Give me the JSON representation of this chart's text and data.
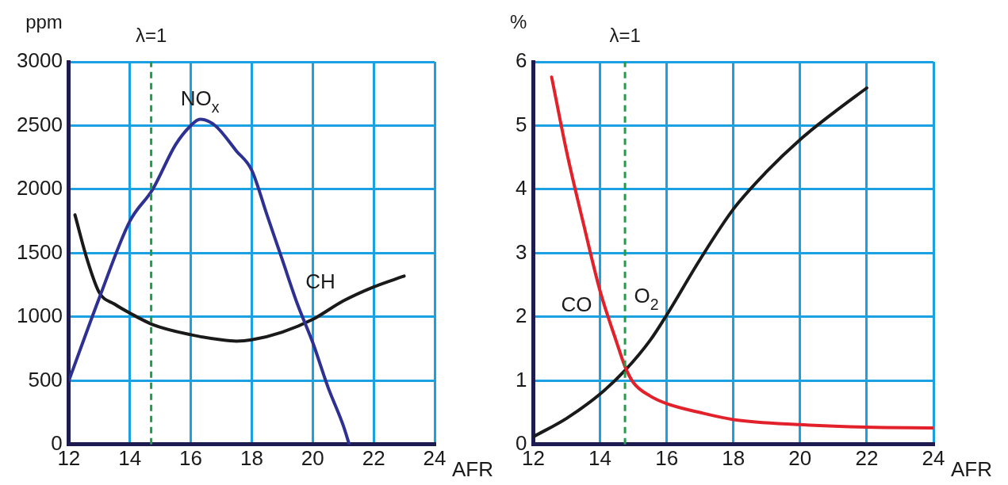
{
  "chart_data": [
    {
      "type": "line",
      "ylabel": "ppm",
      "xlabel": "AFR",
      "xlim": [
        12,
        24
      ],
      "xticks": [
        12,
        14,
        16,
        18,
        20,
        22,
        24
      ],
      "ylim": [
        0,
        3000
      ],
      "yticks": [
        0,
        500,
        1000,
        1500,
        2000,
        2500,
        3000
      ],
      "grid": true,
      "legend": false,
      "marker": "none",
      "line_style": "solid",
      "ref_lines": [
        {
          "axis": "x",
          "value": 14.7,
          "color": "#1f9d48",
          "line_style": "dashed"
        }
      ],
      "annotations": [
        "λ=1",
        {
          "text": "NO$_{x}$",
          "x": 16.3,
          "y": 2550
        },
        {
          "text": "CH",
          "x": 21,
          "y": 1125
        }
      ],
      "series": [
        {
          "color": "#2e3192",
          "x": [
            12,
            13,
            14,
            14.75,
            15.5,
            16,
            16.3,
            16.8,
            17.5,
            18,
            18.5,
            19,
            19.5,
            20,
            20.5,
            21,
            21.2
          ],
          "values": [
            500,
            1150,
            1750,
            2000,
            2350,
            2500,
            2550,
            2500,
            2300,
            2150,
            1800,
            1450,
            1100,
            800,
            450,
            150,
            0
          ]
        },
        {
          "color": "#1a1a1a",
          "x": [
            12.2,
            12.6,
            13,
            13.5,
            14,
            14.75,
            16,
            17,
            17.5,
            18,
            19,
            20,
            21,
            22,
            23
          ],
          "values": [
            1800,
            1450,
            1190,
            1100,
            1030,
            940,
            860,
            820,
            810,
            820,
            880,
            980,
            1125,
            1235,
            1320
          ]
        }
      ]
    },
    {
      "type": "line",
      "ylabel": "%",
      "xlabel": "AFR",
      "xlim": [
        12,
        24
      ],
      "xticks": [
        12,
        14,
        16,
        18,
        20,
        22,
        24
      ],
      "ylim": [
        0,
        6
      ],
      "yticks": [
        0,
        1,
        2,
        3,
        4,
        5,
        6
      ],
      "grid": true,
      "legend": false,
      "marker": "none",
      "line_style": "solid",
      "ref_lines": [
        {
          "axis": "x",
          "value": 14.75,
          "color": "#1f9d48",
          "line_style": "dashed"
        }
      ],
      "annotations": [
        "λ=1",
        {
          "text": "CO",
          "x": 14,
          "y": 2.41
        },
        {
          "text": "O$_{2}$",
          "x": 16,
          "y": 2.03
        }
      ],
      "series": [
        {
          "color": "#e3212a",
          "x": [
            12.55,
            13,
            13.5,
            14,
            14.5,
            14.75,
            15,
            15.5,
            16,
            17,
            18,
            20,
            22,
            24
          ],
          "values": [
            5.76,
            4.59,
            3.47,
            2.41,
            1.6,
            1.22,
            0.97,
            0.76,
            0.64,
            0.5,
            0.39,
            0.31,
            0.27,
            0.26
          ]
        },
        {
          "color": "#1a1a1a",
          "x": [
            12,
            13,
            14,
            14.75,
            15.5,
            16,
            17,
            18,
            19,
            20,
            21,
            22
          ],
          "values": [
            0.12,
            0.41,
            0.79,
            1.16,
            1.63,
            2.03,
            2.9,
            3.69,
            4.28,
            4.78,
            5.2,
            5.59
          ]
        }
      ]
    }
  ]
}
